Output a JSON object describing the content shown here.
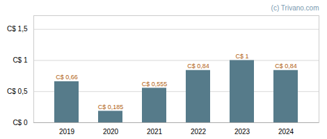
{
  "chart_data": {
    "type": "bar",
    "categories": [
      "2019",
      "2020",
      "2021",
      "2022",
      "2023",
      "2024"
    ],
    "values": [
      0.66,
      0.185,
      0.555,
      0.84,
      1.0,
      0.84
    ],
    "value_labels": [
      "C$ 0,66",
      "C$ 0,185",
      "C$ 0,555",
      "C$ 0,84",
      "C$ 1",
      "C$ 0,84"
    ],
    "data_labels": true,
    "color": "#567b8a",
    "ylim": [
      0,
      1.72
    ],
    "yticks": [
      {
        "value": 0,
        "label": "C$ 0"
      },
      {
        "value": 0.5,
        "label": "C$ 0,5"
      },
      {
        "value": 1.0,
        "label": "C$ 1"
      },
      {
        "value": 1.5,
        "label": "C$ 1,5"
      }
    ],
    "grid": true,
    "annotations": [
      "(c) Trivano.com"
    ]
  }
}
